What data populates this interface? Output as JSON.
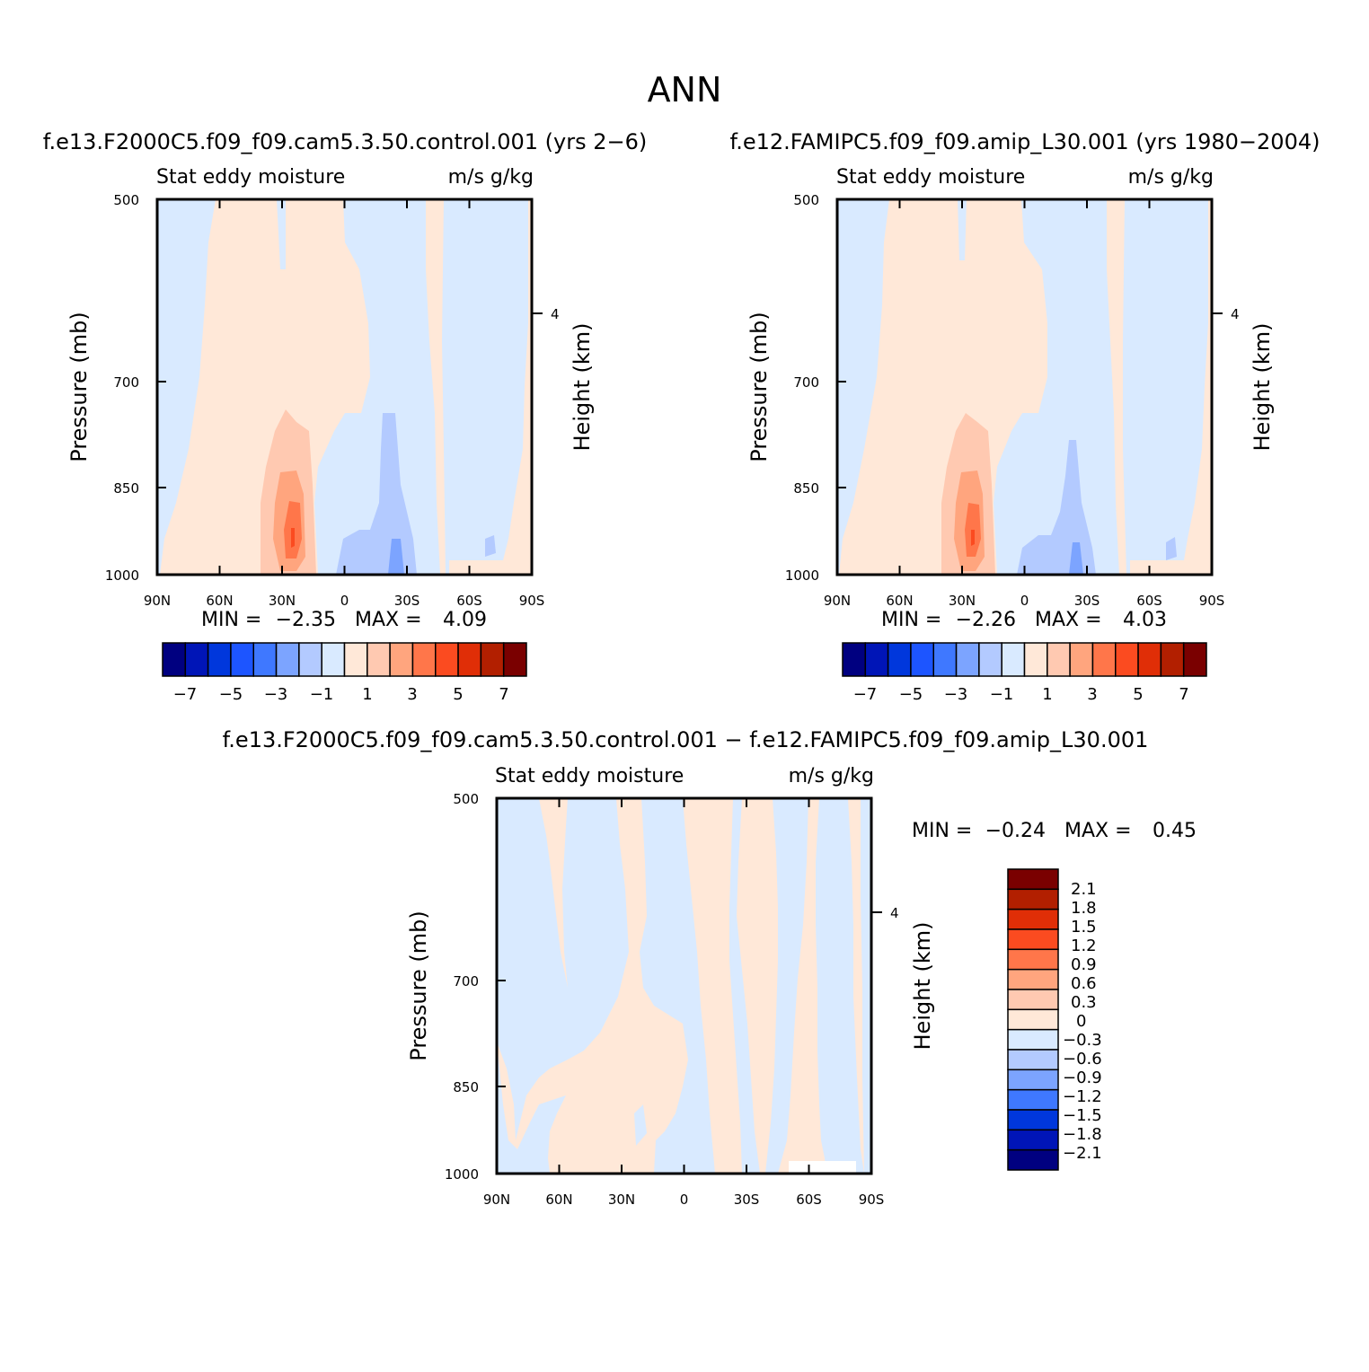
{
  "page_title": "ANN",
  "colors": {
    "bar_13": [
      "#000080",
      "#0015b7",
      "#0037dc",
      "#1d55ff",
      "#3f78ff",
      "#7ca4ff",
      "#b3caff",
      "#d9eaff",
      "#ffe8d8",
      "#ffc9b1",
      "#ffa57e",
      "#ff764a",
      "#fb4b20",
      "#e02e07",
      "#b21f00",
      "#7a0000"
    ],
    "bar_diff": [
      "#000080",
      "#0015b7",
      "#0037dc",
      "#3f78ff",
      "#7ca4ff",
      "#b3caff",
      "#d9eaff",
      "#ffe8d8",
      "#ffc9b1",
      "#ffa57e",
      "#ff764a",
      "#fb4b20",
      "#e02e07",
      "#b21f00",
      "#7a0000"
    ],
    "axis": "#000000"
  },
  "panel1": {
    "case": "f.e13.F2000C5.f09_f09.cam5.3.50.control.001 (yrs 2−6)",
    "left_label": "Stat eddy moisture",
    "right_label": "m/s g/kg",
    "ylabel": "Pressure (mb)",
    "ylabel2": "Height (km)",
    "min_label": "MIN =",
    "min_value": "−2.35",
    "max_label": "MAX =",
    "max_value": "4.09"
  },
  "panel2": {
    "case": "f.e12.FAMIPC5.f09_f09.amip_L30.001 (yrs 1980−2004)",
    "left_label": "Stat eddy moisture",
    "right_label": "m/s g/kg",
    "ylabel": "Pressure (mb)",
    "ylabel2": "Height (km)",
    "min_label": "MIN =",
    "min_value": "−2.26",
    "max_label": "MAX =",
    "max_value": "4.03"
  },
  "panel3": {
    "case": "f.e13.F2000C5.f09_f09.cam5.3.50.control.001 − f.e12.FAMIPC5.f09_f09.amip_L30.001",
    "left_label": "Stat eddy moisture",
    "right_label": "m/s g/kg",
    "ylabel": "Pressure (mb)",
    "ylabel2": "Height (km)",
    "min_label": "MIN =",
    "min_value": "−0.24",
    "max_label": "MAX =",
    "max_value": "0.45"
  },
  "axes": {
    "x_ticks": [
      "90N",
      "60N",
      "30N",
      "0",
      "30S",
      "60S",
      "90S"
    ],
    "y_ticks": [
      "500",
      "700",
      "850",
      "1000"
    ],
    "y_right_ticks": [
      "4"
    ]
  },
  "colorbar_main": {
    "labels": [
      "−7",
      "−5",
      "−3",
      "−1",
      "1",
      "3",
      "5",
      "7"
    ]
  },
  "colorbar_diff": {
    "labels": [
      "2.1",
      "1.8",
      "1.5",
      "1.2",
      "0.9",
      "0.6",
      "0.3",
      "0",
      "−0.3",
      "−0.6",
      "−0.9",
      "−1.2",
      "−1.5",
      "−1.8",
      "−2.1"
    ]
  },
  "chart_data": [
    {
      "type": "heatmap",
      "title": "f.e13.F2000C5.f09_f09.cam5.3.50.control.001 (yrs 2−6)",
      "subtitle_left": "Stat eddy moisture",
      "subtitle_right": "m/s g/kg",
      "xlabel": "",
      "ylabel": "Pressure (mb)",
      "ylabel_right": "Height (km)",
      "x": [
        90,
        60,
        30,
        0,
        -30,
        -60,
        -90
      ],
      "xlim": [
        90,
        -90
      ],
      "y_ticks": [
        500,
        700,
        850,
        1000
      ],
      "ylim": [
        500,
        1000
      ],
      "levels": [
        -7,
        -6,
        -5,
        -4,
        -3,
        -2,
        -1,
        0,
        1,
        2,
        3,
        4,
        5,
        6,
        7
      ],
      "min": -2.35,
      "max": 4.09
    },
    {
      "type": "heatmap",
      "title": "f.e12.FAMIPC5.f09_f09.amip_L30.001 (yrs 1980−2004)",
      "subtitle_left": "Stat eddy moisture",
      "subtitle_right": "m/s g/kg",
      "xlabel": "",
      "ylabel": "Pressure (mb)",
      "ylabel_right": "Height (km)",
      "x": [
        90,
        60,
        30,
        0,
        -30,
        -60,
        -90
      ],
      "xlim": [
        90,
        -90
      ],
      "y_ticks": [
        500,
        700,
        850,
        1000
      ],
      "ylim": [
        500,
        1000
      ],
      "levels": [
        -7,
        -6,
        -5,
        -4,
        -3,
        -2,
        -1,
        0,
        1,
        2,
        3,
        4,
        5,
        6,
        7
      ],
      "min": -2.26,
      "max": 4.03
    },
    {
      "type": "heatmap",
      "title": "f.e13.F2000C5.f09_f09.cam5.3.50.control.001 − f.e12.FAMIPC5.f09_f09.amip_L30.001",
      "subtitle_left": "Stat eddy moisture",
      "subtitle_right": "m/s g/kg",
      "xlabel": "",
      "ylabel": "Pressure (mb)",
      "ylabel_right": "Height (km)",
      "x": [
        90,
        60,
        30,
        0,
        -30,
        -60,
        -90
      ],
      "xlim": [
        90,
        -90
      ],
      "y_ticks": [
        500,
        700,
        850,
        1000
      ],
      "ylim": [
        500,
        1000
      ],
      "levels": [
        -2.1,
        -1.8,
        -1.5,
        -1.2,
        -0.9,
        -0.6,
        -0.3,
        0,
        0.3,
        0.6,
        0.9,
        1.2,
        1.5,
        1.8,
        2.1
      ],
      "min": -0.24,
      "max": 0.45
    }
  ]
}
